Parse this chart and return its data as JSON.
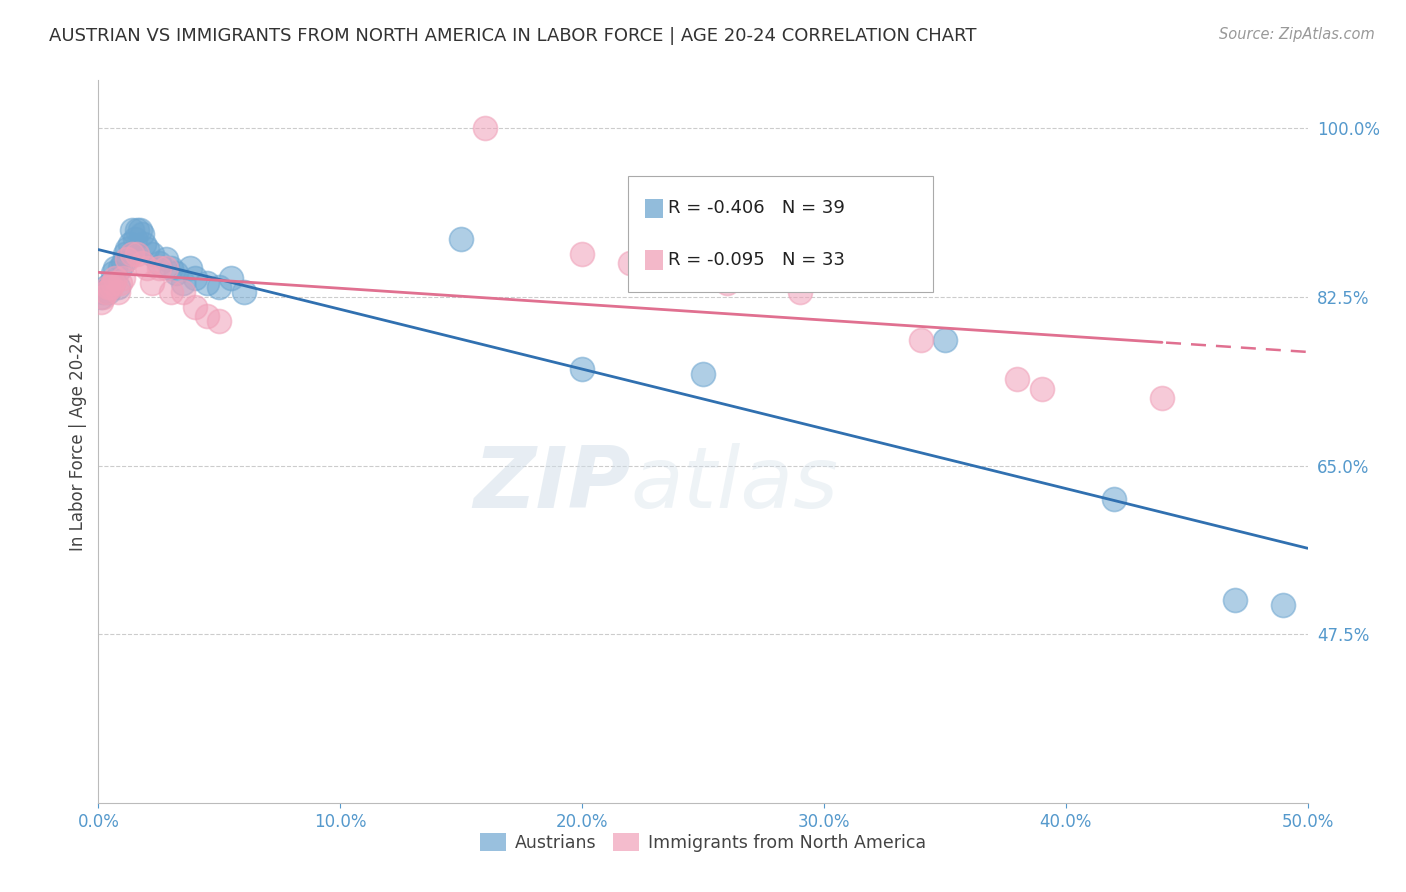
{
  "title": "AUSTRIAN VS IMMIGRANTS FROM NORTH AMERICA IN LABOR FORCE | AGE 20-24 CORRELATION CHART",
  "source": "Source: ZipAtlas.com",
  "ylabel": "In Labor Force | Age 20-24",
  "xlim": [
    0.0,
    0.5
  ],
  "ylim": [
    0.3,
    1.05
  ],
  "xtick_labels": [
    "0.0%",
    "10.0%",
    "20.0%",
    "30.0%",
    "40.0%",
    "50.0%"
  ],
  "xtick_values": [
    0.0,
    0.1,
    0.2,
    0.3,
    0.4,
    0.5
  ],
  "ytick_labels": [
    "47.5%",
    "65.0%",
    "82.5%",
    "100.0%"
  ],
  "ytick_values": [
    0.475,
    0.65,
    0.825,
    1.0
  ],
  "blue_R": -0.406,
  "blue_N": 39,
  "pink_R": -0.095,
  "pink_N": 33,
  "blue_color": "#6EA6D0",
  "pink_color": "#F0A0B8",
  "blue_line_color": "#3070B0",
  "pink_line_color": "#E07090",
  "legend_label_blue": "Austrians",
  "legend_label_pink": "Immigrants from North America",
  "blue_x": [
    0.001,
    0.002,
    0.003,
    0.004,
    0.005,
    0.006,
    0.007,
    0.008,
    0.009,
    0.01,
    0.011,
    0.012,
    0.013,
    0.014,
    0.015,
    0.016,
    0.017,
    0.018,
    0.019,
    0.02,
    0.022,
    0.025,
    0.028,
    0.03,
    0.032,
    0.035,
    0.038,
    0.04,
    0.045,
    0.05,
    0.055,
    0.06,
    0.15,
    0.2,
    0.25,
    0.35,
    0.42,
    0.47,
    0.49
  ],
  "blue_y": [
    0.825,
    0.83,
    0.835,
    0.83,
    0.84,
    0.85,
    0.855,
    0.835,
    0.855,
    0.86,
    0.87,
    0.875,
    0.88,
    0.895,
    0.885,
    0.895,
    0.895,
    0.89,
    0.88,
    0.875,
    0.87,
    0.86,
    0.865,
    0.855,
    0.85,
    0.84,
    0.855,
    0.845,
    0.84,
    0.835,
    0.845,
    0.83,
    0.885,
    0.75,
    0.745,
    0.78,
    0.615,
    0.51,
    0.505
  ],
  "pink_x": [
    0.001,
    0.002,
    0.003,
    0.004,
    0.005,
    0.006,
    0.007,
    0.008,
    0.009,
    0.01,
    0.012,
    0.014,
    0.016,
    0.018,
    0.02,
    0.022,
    0.025,
    0.028,
    0.03,
    0.035,
    0.04,
    0.045,
    0.05,
    0.16,
    0.2,
    0.22,
    0.24,
    0.26,
    0.29,
    0.34,
    0.38,
    0.39,
    0.44
  ],
  "pink_y": [
    0.82,
    0.825,
    0.83,
    0.835,
    0.835,
    0.84,
    0.845,
    0.83,
    0.84,
    0.845,
    0.865,
    0.87,
    0.87,
    0.86,
    0.855,
    0.84,
    0.855,
    0.855,
    0.83,
    0.83,
    0.815,
    0.805,
    0.8,
    1.0,
    0.87,
    0.86,
    0.855,
    0.84,
    0.83,
    0.78,
    0.74,
    0.73,
    0.72
  ],
  "watermark_line1": "ZIP",
  "watermark_line2": "atlas",
  "background_color": "#ffffff",
  "grid_color": "#cccccc"
}
